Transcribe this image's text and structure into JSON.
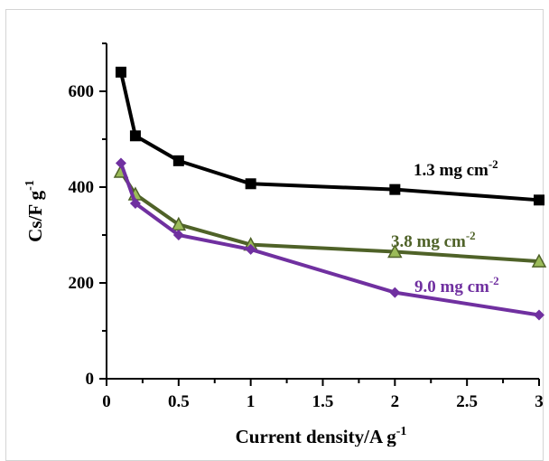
{
  "chart_data": {
    "type": "line",
    "xlabel": "Current density/A g",
    "xlabel_sup": "-1",
    "ylabel": "Cs/F g",
    "ylabel_sup": "-1",
    "xlim": [
      0,
      3
    ],
    "ylim": [
      0,
      700
    ],
    "x_ticks": [
      0,
      0.5,
      1,
      1.5,
      2,
      2.5,
      3
    ],
    "x_tick_labels": [
      "0",
      "0.5",
      "1",
      "1.5",
      "2",
      "2.5",
      "3"
    ],
    "y_ticks": [
      0,
      200,
      400,
      600
    ],
    "y_tick_labels": [
      "0",
      "200",
      "400",
      "600"
    ],
    "grid": false,
    "series": [
      {
        "name": "1.3 mg cm",
        "name_sup": "-2",
        "marker": "square",
        "color": "#000000",
        "x": [
          0.1,
          0.2,
          0.5,
          1,
          2,
          3
        ],
        "y": [
          640,
          507,
          455,
          407,
          395,
          373
        ]
      },
      {
        "name": "3.8 mg cm",
        "name_sup": "-2",
        "marker": "triangle",
        "color": "#4f6228",
        "marker_fill": "#9bbb59",
        "x": [
          0.1,
          0.2,
          0.5,
          1,
          2,
          3
        ],
        "y": [
          432,
          385,
          322,
          280,
          265,
          245
        ]
      },
      {
        "name": "9.0 mg cm",
        "name_sup": "-2",
        "marker": "diamond",
        "color": "#7030a0",
        "x": [
          0.1,
          0.2,
          0.5,
          1,
          2,
          3
        ],
        "y": [
          450,
          366,
          300,
          270,
          180,
          133
        ]
      }
    ]
  }
}
